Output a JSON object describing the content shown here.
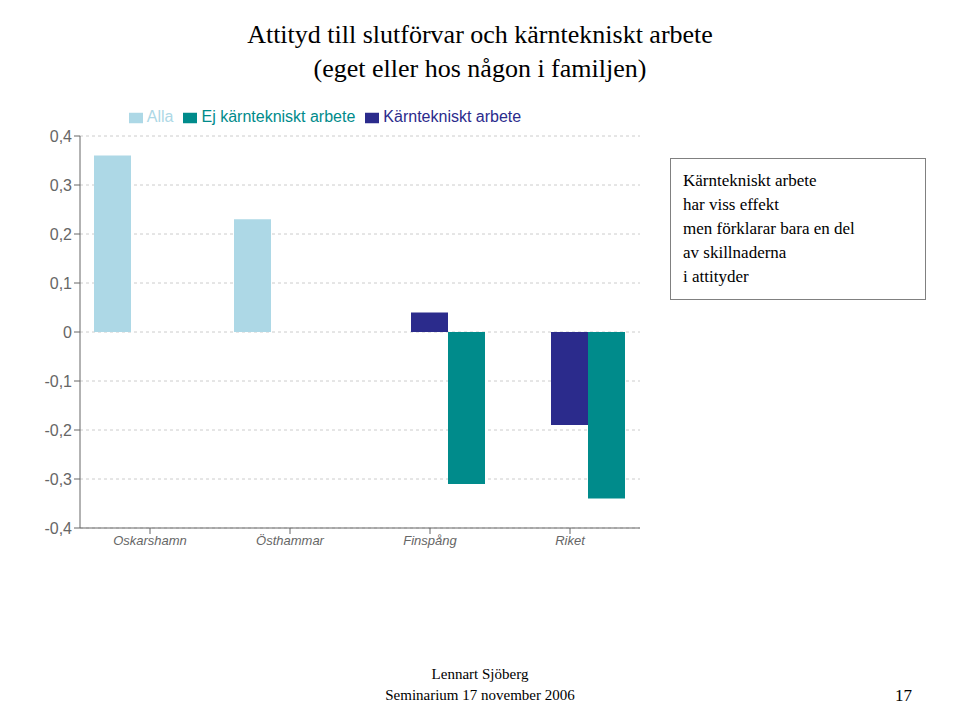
{
  "chart_data": {
    "type": "bar",
    "title": "Attityd till slutförvar och kärntekniskt arbete",
    "subtitle": "(eget eller hos någon i familjen)",
    "categories": [
      "Oskarshamn",
      "Östhammar",
      "Finspång",
      "Riket"
    ],
    "series": [
      {
        "name": "Alla",
        "values": [
          0.36,
          0.23,
          0.0,
          0.0
        ],
        "color": "#add8e6"
      },
      {
        "name": "Kärntekniskt arbete",
        "values": [
          0.0,
          0.0,
          0.04,
          -0.19
        ],
        "color": "#2b2b8c"
      },
      {
        "name": "Ej kärntekniskt arbete",
        "values": [
          0.0,
          0.0,
          -0.31,
          -0.34
        ],
        "color": "#008b8b"
      }
    ],
    "ylim": [
      -0.4,
      0.4
    ],
    "yticks": [
      {
        "value": -0.4,
        "label": "-0,4"
      },
      {
        "value": -0.3,
        "label": "-0,3"
      },
      {
        "value": -0.2,
        "label": "-0,2"
      },
      {
        "value": -0.1,
        "label": "-0,1"
      },
      0,
      {
        "value": 0.1,
        "label": "0,1"
      },
      {
        "value": 0.2,
        "label": "0,2"
      },
      {
        "value": 0.3,
        "label": "0,3"
      },
      {
        "value": 0.4,
        "label": "0,4"
      }
    ],
    "grid": true,
    "legend": "top",
    "annotation": "Kärntekniskt arbete\nhar viss effekt\nmen förklarar bara en del\nav skillnaderna\ni attityder",
    "footer": [
      "Lennart Sjöberg",
      "Seminarium 17 november 2006"
    ],
    "slide_number": "17"
  }
}
